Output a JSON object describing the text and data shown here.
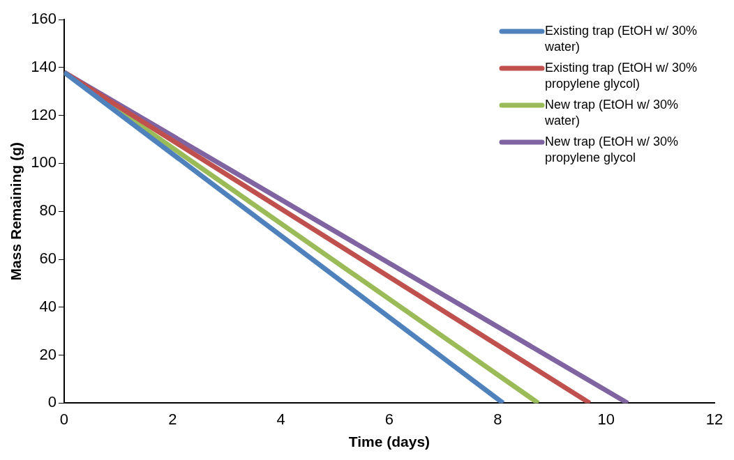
{
  "chart_data": {
    "type": "line",
    "xlabel": "Time (days)",
    "ylabel": "Mass Remaining (g)",
    "xlim": [
      0,
      12
    ],
    "xticks": [
      0,
      2,
      4,
      6,
      8,
      10,
      12
    ],
    "ylim": [
      0,
      160
    ],
    "yticks": [
      0,
      20,
      40,
      60,
      80,
      100,
      120,
      140,
      160
    ],
    "grid": false,
    "legend": "top right",
    "marker": "none",
    "line_style": "solid",
    "series": [
      {
        "name": "Existing trap (EtOH w/ 30% water)",
        "color": "#4f81bd",
        "x": [
          0,
          8.1
        ],
        "values": [
          138,
          0
        ]
      },
      {
        "name": "Existing trap (EtOH w/ 30% propylene glycol)",
        "color": "#c0504d",
        "x": [
          0,
          9.7
        ],
        "values": [
          138,
          0
        ]
      },
      {
        "name": "New trap (EtOH w/ 30% water)",
        "color": "#9bbb59",
        "x": [
          0,
          8.75
        ],
        "values": [
          138,
          0
        ]
      },
      {
        "name": "New trap (EtOH w/ 30% propylene glycol",
        "color": "#8064a2",
        "x": [
          0,
          10.4
        ],
        "values": [
          138,
          0
        ]
      }
    ]
  }
}
